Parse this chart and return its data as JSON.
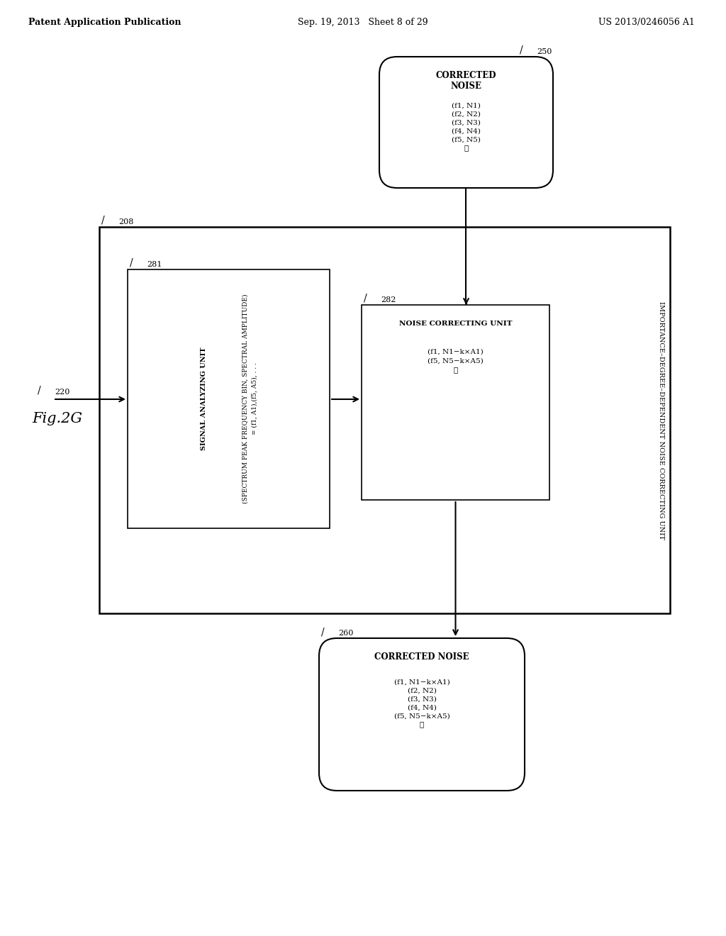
{
  "fig_label": "Fig.2G",
  "header_left": "Patent Application Publication",
  "header_center": "Sep. 19, 2013   Sheet 8 of 29",
  "header_right": "US 2013/0246056 A1",
  "bg_color": "#ffffff",
  "text_color": "#000000",
  "box_250_label": "250",
  "box_250_title": "CORRECTED\nNOISE",
  "box_250_content": "(f1, N1)\n(f2, N2)\n(f3, N3)\n(f4, N4)\n(f5, N5)\n⋯",
  "box_260_label": "260",
  "box_260_title": "CORRECTED NOISE",
  "box_260_content": "(f1, N1−k×A1)\n(f2, N2)\n(f3, N3)\n(f4, N4)\n(f5, N5−k×A5)\n⋯",
  "outer_box_label": "208",
  "outer_box_side_label": "IMPORTANCE–DEGREE–DEPENDENT NOISE CORRECTING UNIT",
  "inner_box_281_label": "281",
  "inner_box_281_title": "SIGNAL ANALYZING UNIT",
  "inner_box_281_content_line1": "(SPECTRUM PEAK FREQUENCY BIN, SPECTRAL AMPLITUDE)",
  "inner_box_281_content_line2": "= (f1, A1),(f5, A5), . . .",
  "inner_box_282_label": "282",
  "inner_box_282_title": "NOISE CORRECTING UNIT",
  "inner_box_282_content": "(f1, N1−k×A1)\n(f5, N5−k×A5)\n⋮",
  "arrow_220_label": "220",
  "font_size_header": 9,
  "font_size_label": 8,
  "font_size_content": 7.5
}
